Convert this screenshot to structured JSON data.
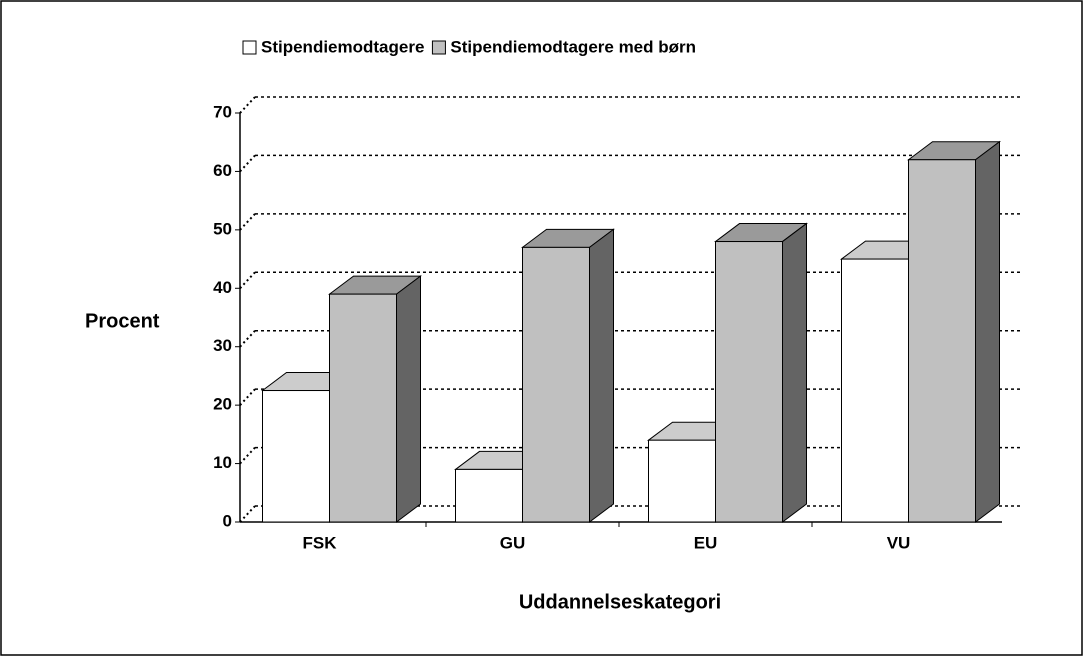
{
  "chart_data": {
    "type": "bar3d",
    "legend": "top",
    "x_label": "Uddannelseskategori",
    "y_label": "Procent",
    "categories": [
      "FSK",
      "GU",
      "EU",
      "VU"
    ],
    "series": [
      {
        "name": "Stipendiemodtagere",
        "color": "#ffffff",
        "values": [
          22.5,
          9,
          14,
          45
        ]
      },
      {
        "name": "Stipendiemodtagere med børn",
        "color": "#c0c0c0",
        "values": [
          39,
          47,
          48,
          62
        ]
      }
    ],
    "ylim": [
      0,
      70
    ],
    "yticks": [
      0,
      10,
      20,
      30,
      40,
      50,
      60,
      70
    ],
    "grid": true
  }
}
